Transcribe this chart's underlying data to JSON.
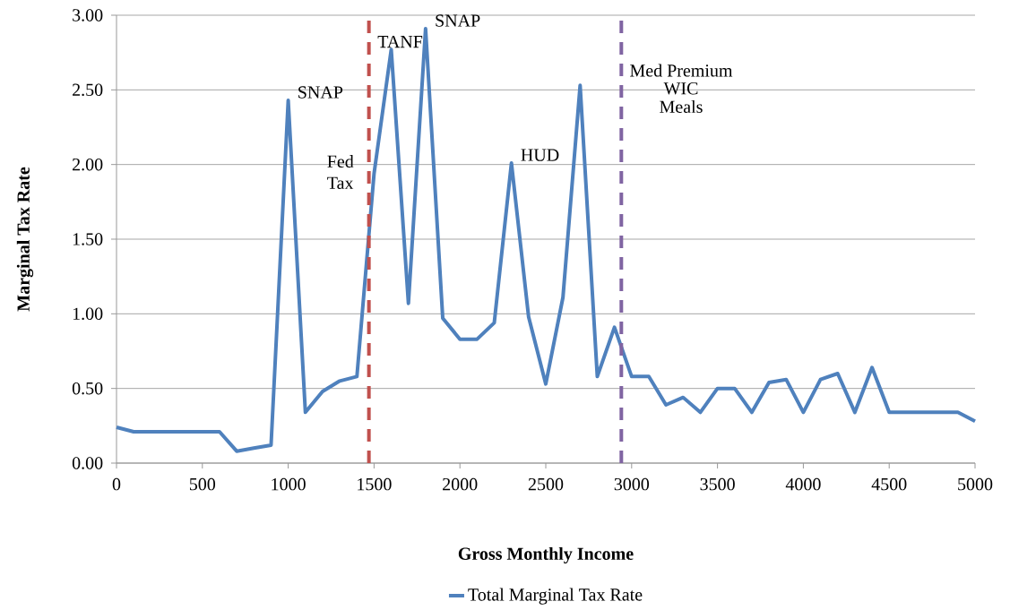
{
  "chart_data": {
    "type": "line",
    "xlabel": "Gross Monthly Income",
    "ylabel": "Marginal Tax Rate",
    "x": [
      0,
      100,
      200,
      300,
      400,
      500,
      600,
      700,
      800,
      900,
      1000,
      1100,
      1200,
      1300,
      1400,
      1500,
      1600,
      1700,
      1800,
      1900,
      2000,
      2100,
      2200,
      2300,
      2400,
      2500,
      2600,
      2700,
      2800,
      2900,
      3000,
      3100,
      3200,
      3300,
      3400,
      3500,
      3600,
      3700,
      3800,
      3900,
      4000,
      4100,
      4200,
      4300,
      4400,
      4500,
      4600,
      4700,
      4800,
      4900,
      5000
    ],
    "series": [
      {
        "name": "Total Marginal Tax Rate",
        "color": "#4f81bd",
        "values": [
          0.24,
          0.21,
          0.21,
          0.21,
          0.21,
          0.21,
          0.21,
          0.08,
          0.1,
          0.12,
          2.43,
          0.34,
          0.48,
          0.55,
          0.58,
          1.94,
          2.77,
          1.07,
          2.91,
          0.97,
          0.83,
          0.83,
          0.94,
          2.01,
          0.98,
          0.53,
          1.11,
          2.53,
          0.58,
          0.91,
          0.58,
          0.58,
          0.39,
          0.44,
          0.34,
          0.5,
          0.5,
          0.34,
          0.54,
          0.56,
          0.34,
          0.56,
          0.6,
          0.34,
          0.64,
          0.34,
          0.34,
          0.34,
          0.34,
          0.34,
          0.28
        ]
      }
    ],
    "xlim": [
      0,
      5000
    ],
    "ylim": [
      0,
      3
    ],
    "xticks": [
      0,
      500,
      1000,
      1500,
      2000,
      2500,
      3000,
      3500,
      4000,
      4500,
      5000
    ],
    "yticks": [
      {
        "value": 0,
        "label": "0.00"
      },
      {
        "value": 0.5,
        "label": "0.50"
      },
      {
        "value": 1,
        "label": "1.00"
      },
      {
        "value": 1.5,
        "label": "1.50"
      },
      {
        "value": 2,
        "label": "2.00"
      },
      {
        "value": 2.5,
        "label": "2.50"
      },
      {
        "value": 3,
        "label": "3.00"
      }
    ],
    "grid": "y",
    "legend": "bottom",
    "ref_lines": [
      {
        "axis": "x",
        "value": 1470,
        "label": "Fed Tax",
        "color": "#c0504d",
        "line_style": "dashed"
      },
      {
        "axis": "x",
        "value": 2940,
        "label": "Med Premium",
        "color": "#8064a2",
        "line_style": "dashed"
      }
    ],
    "annotations": [
      {
        "text": "SNAP",
        "x": 1000,
        "y": 2.43
      },
      {
        "text": "TANF",
        "x": 1600,
        "y": 2.77
      },
      {
        "text": "SNAP",
        "x": 1800,
        "y": 2.91
      },
      {
        "text": "HUD",
        "x": 2300,
        "y": 2.01
      },
      "WIC",
      "Meals"
    ]
  }
}
